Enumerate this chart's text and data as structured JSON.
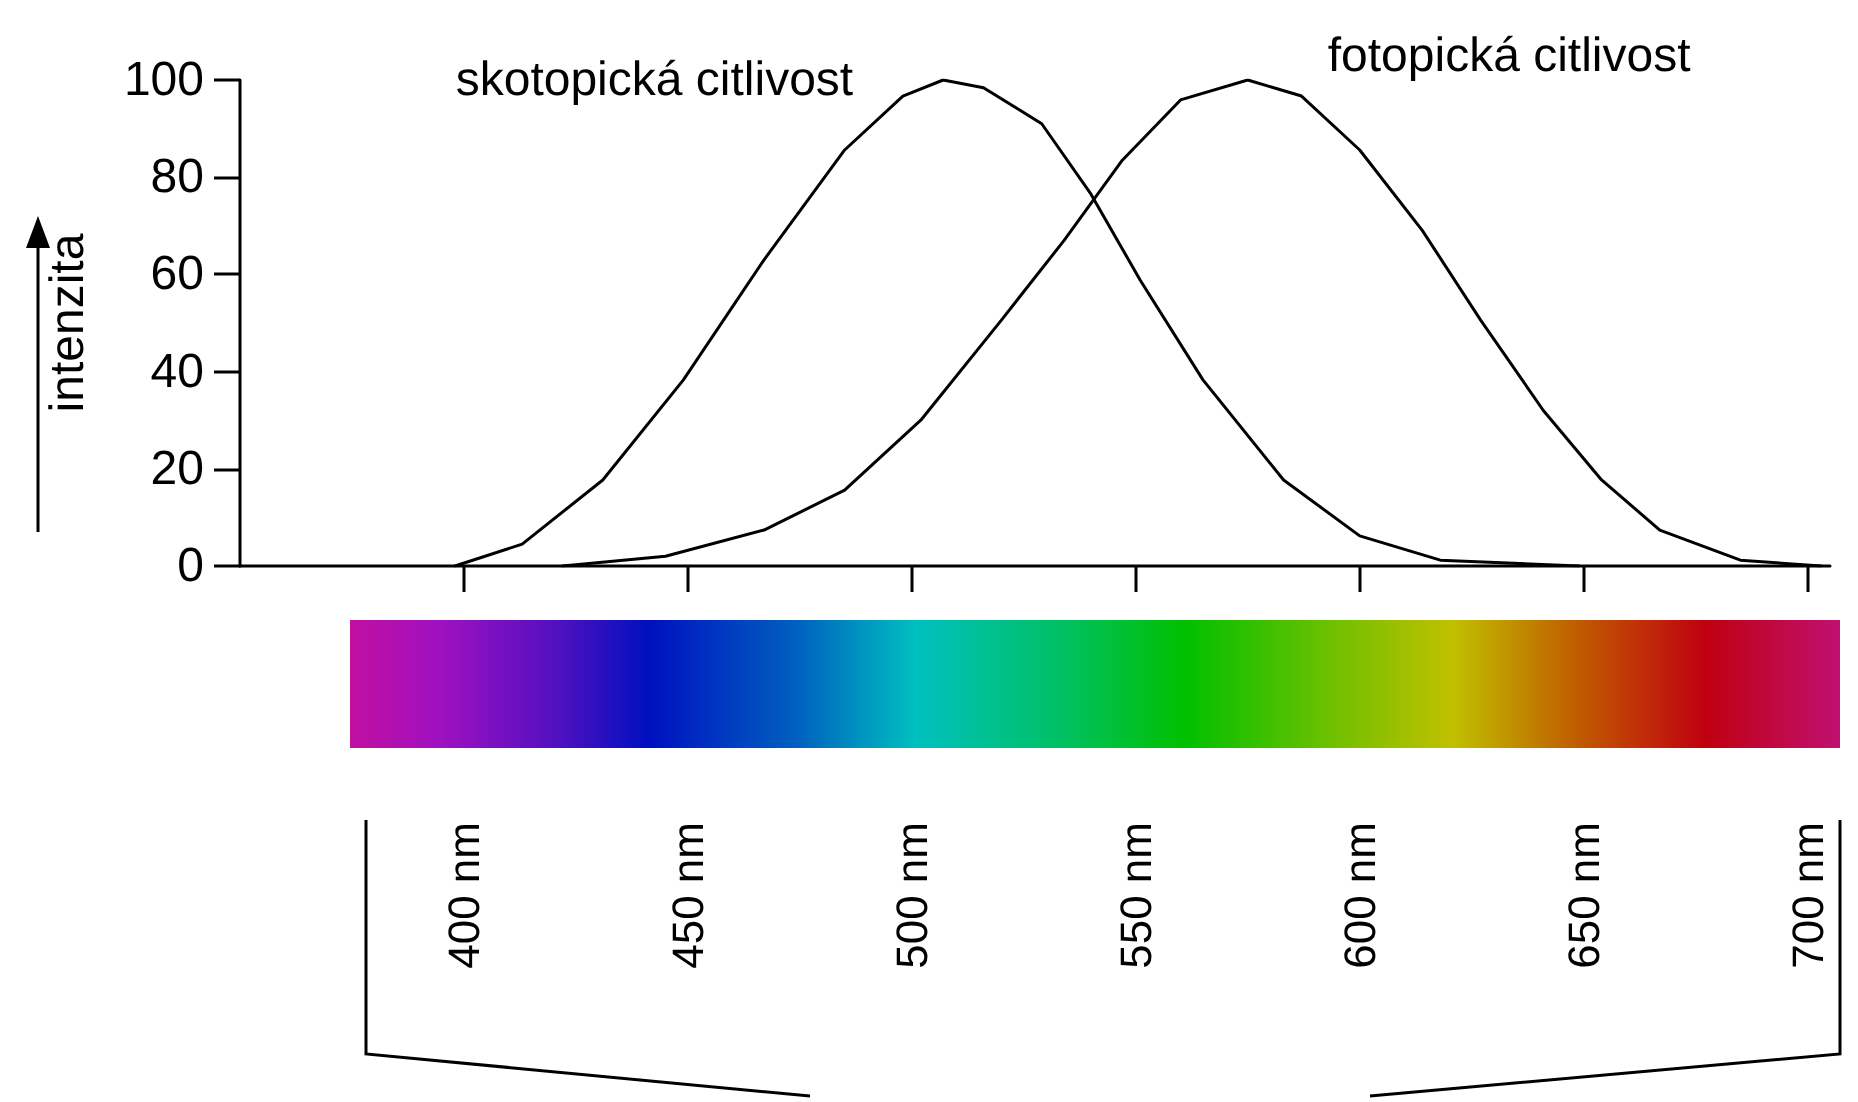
{
  "chart_data": {
    "type": "line",
    "ylabel": "intenzita",
    "xlim": [
      350,
      705
    ],
    "ylim": [
      0,
      100
    ],
    "xticks": [
      {
        "value": 400,
        "label": "400 nm"
      },
      {
        "value": 450,
        "label": "450 nm"
      },
      {
        "value": 500,
        "label": "500 nm"
      },
      {
        "value": 550,
        "label": "550 nm"
      },
      {
        "value": 600,
        "label": "600 nm"
      },
      {
        "value": 650,
        "label": "650 nm"
      },
      {
        "value": 700,
        "label": "700 nm"
      }
    ],
    "yticks": [
      0,
      20,
      40,
      60,
      80,
      100
    ],
    "grid": false,
    "legend": false,
    "marker": "none",
    "line_style": "solid",
    "series": [
      {
        "name": "skotopická citlivost",
        "color": "#000000",
        "x": [
          398,
          413,
          431,
          449,
          467,
          485,
          498,
          507,
          516,
          529,
          540,
          551,
          565,
          583,
          600,
          618,
          649
        ],
        "values": [
          0,
          4.5,
          17.7,
          38.3,
          63,
          85.6,
          96.7,
          100,
          98.4,
          91,
          76.5,
          58.8,
          38.3,
          17.7,
          6.2,
          1.2,
          0
        ]
      },
      {
        "name": "fotopická citlivost",
        "color": "#000000",
        "x": [
          422,
          445,
          467,
          485,
          502,
          520,
          534,
          547,
          560,
          575,
          587,
          600,
          614,
          627,
          641,
          654,
          667,
          685,
          703
        ],
        "values": [
          0,
          2,
          7.4,
          15.6,
          30,
          50.6,
          67,
          83.5,
          95.9,
          100,
          96.7,
          85.6,
          69,
          50.6,
          32,
          17.7,
          7.4,
          1.2,
          0
        ]
      }
    ]
  }
}
